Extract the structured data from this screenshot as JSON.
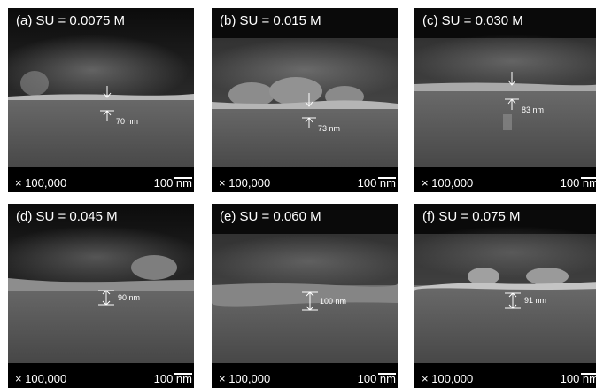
{
  "panels": [
    {
      "label": "(a) SU = 0.0075 M",
      "thickness": "70 nm"
    },
    {
      "label": "(b) SU = 0.015 M",
      "thickness": "73 nm"
    },
    {
      "label": "(c) SU = 0.030 M",
      "thickness": "83 nm"
    },
    {
      "label": "(d) SU = 0.045 M",
      "thickness": "90 nm"
    },
    {
      "label": "(e) SU = 0.060 M",
      "thickness": "100 nm"
    },
    {
      "label": "(f) SU = 0.075 M",
      "thickness": "91 nm"
    }
  ],
  "magnification": "× 100,000",
  "scale_bar": "100 nm"
}
